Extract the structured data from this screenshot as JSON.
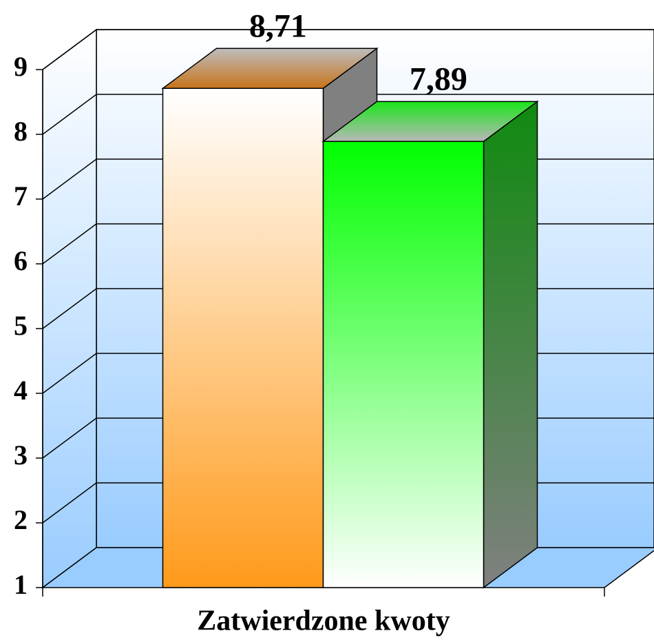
{
  "chart_data": {
    "type": "bar3d",
    "categories": [
      "Zatwierdzone kwoty"
    ],
    "series": [
      {
        "color": "#ff9a1a",
        "values": [
          8.71
        ],
        "value_labels": [
          "8,71"
        ]
      },
      {
        "color": "#00ff00",
        "values": [
          7.89
        ],
        "value_labels": [
          "7,89"
        ]
      }
    ],
    "ylim": [
      1,
      9
    ],
    "yticks": [
      1,
      2,
      3,
      4,
      5,
      6,
      7,
      8,
      9
    ],
    "grid": true
  }
}
